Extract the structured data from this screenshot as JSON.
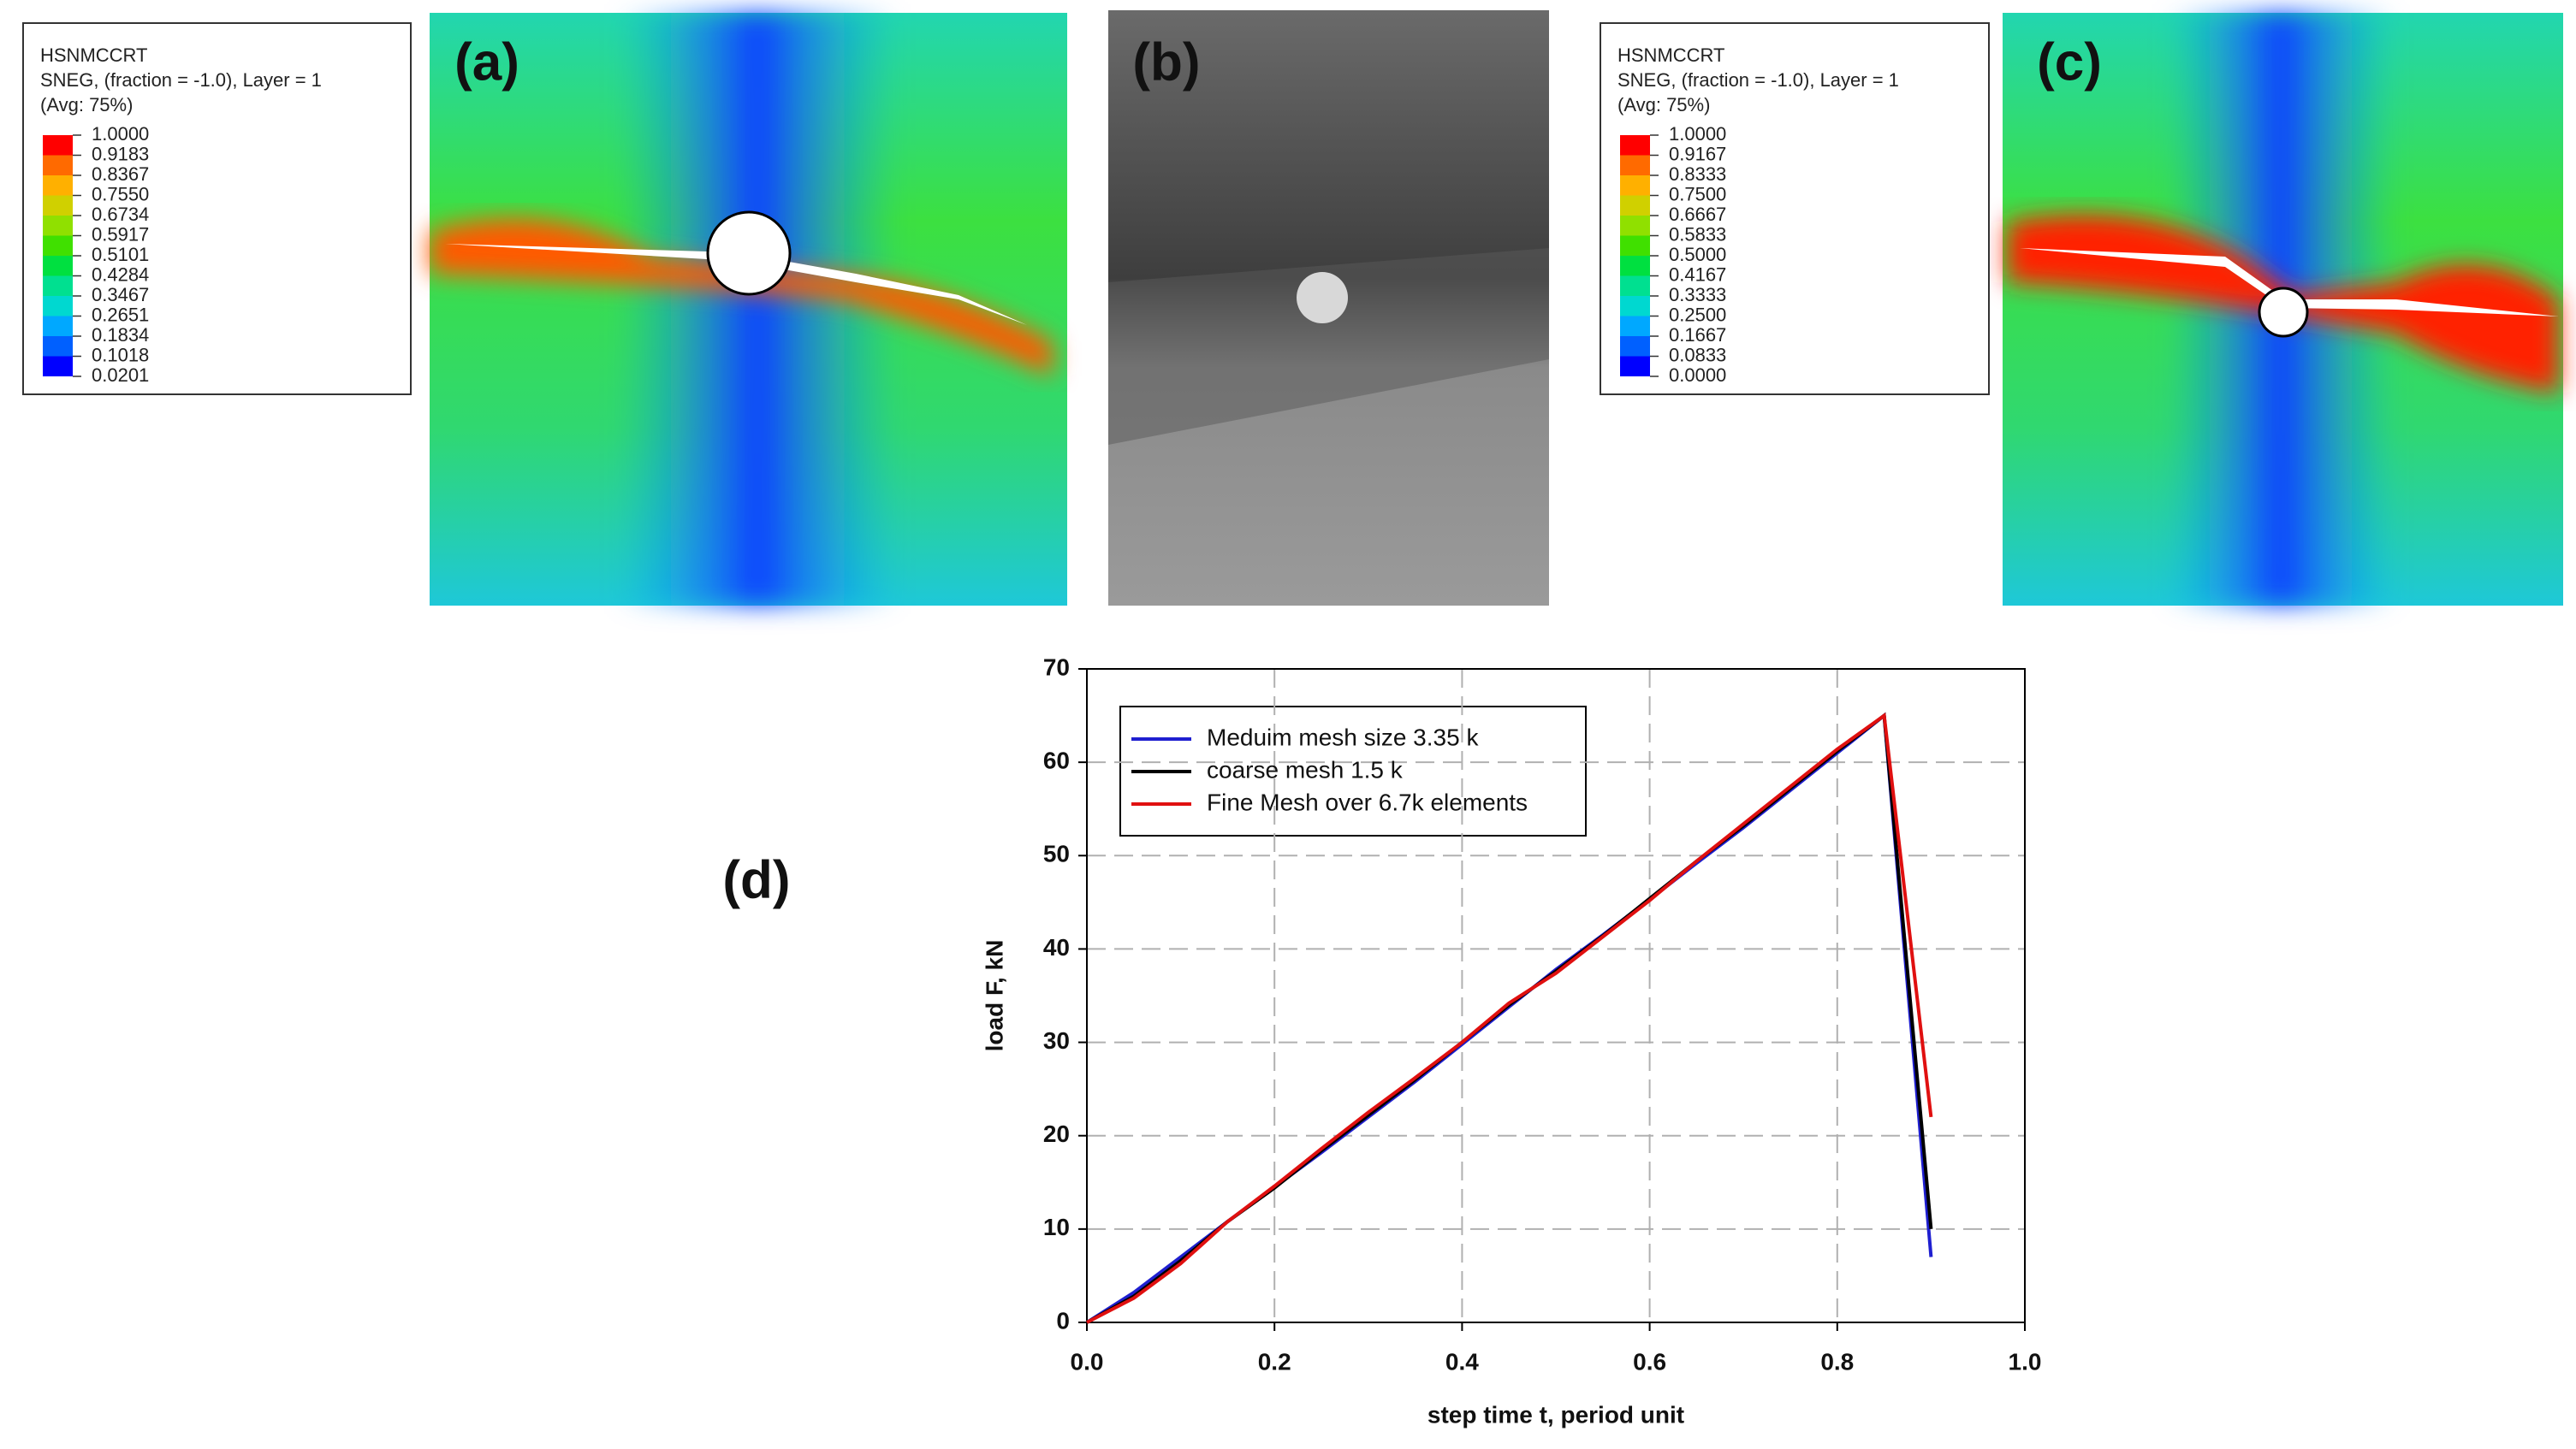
{
  "panels": {
    "a": {
      "label": "(a)",
      "legend": {
        "title": "HSNMCCRT",
        "variable": "SNEG, (fraction = -1.0), Layer = 1",
        "averaging": "(Avg: 75%)",
        "levels": [
          "1.0000",
          "0.9183",
          "0.8367",
          "0.7550",
          "0.6734",
          "0.5917",
          "0.5101",
          "0.4284",
          "0.3467",
          "0.2651",
          "0.1834",
          "0.1018",
          "0.0201"
        ]
      }
    },
    "b": {
      "label": "(b)"
    },
    "c": {
      "label": "(c)",
      "legend": {
        "title": "HSNMCCRT",
        "variable": "SNEG, (fraction = -1.0), Layer = 1",
        "averaging": "(Avg: 75%)",
        "levels": [
          "1.0000",
          "0.9167",
          "0.8333",
          "0.7500",
          "0.6667",
          "0.5833",
          "0.5000",
          "0.4167",
          "0.3333",
          "0.2500",
          "0.1667",
          "0.0833",
          "0.0000"
        ]
      }
    }
  },
  "chart_data": {
    "type": "line",
    "panel_label": "(d)",
    "xlabel": "step time t, period unit",
    "ylabel": "load F, kN",
    "x": [
      0,
      0.05,
      0.1,
      0.15,
      0.2,
      0.25,
      0.3,
      0.35,
      0.4,
      0.45,
      0.5,
      0.55,
      0.6,
      0.65,
      0.7,
      0.75,
      0.8,
      0.85,
      0.9
    ],
    "series": [
      {
        "name": "Meduim mesh size 3.35 k",
        "color": "#1f1fd0",
        "values": [
          0,
          3.2,
          7,
          10.8,
          14.5,
          18.2,
          22,
          25.8,
          29.8,
          33.8,
          37.8,
          41.5,
          45.3,
          49.2,
          53,
          57,
          61,
          65,
          7
        ]
      },
      {
        "name": "coarse mesh 1.5 k",
        "color": "#000000",
        "values": [
          0,
          2.8,
          6.6,
          10.8,
          14.4,
          18.4,
          22.2,
          26,
          30,
          34,
          37.6,
          41.4,
          45.4,
          49.4,
          53.2,
          57.2,
          61.2,
          65,
          10
        ]
      },
      {
        "name": "Fine Mesh over 6.7k elements",
        "color": "#e01010",
        "values": [
          0,
          2.6,
          6.3,
          10.8,
          14.6,
          18.6,
          22.5,
          26.2,
          30,
          34.2,
          37.4,
          41.3,
          45.2,
          49.4,
          53.4,
          57.4,
          61.4,
          65,
          22
        ]
      }
    ],
    "xlim": [
      0,
      1
    ],
    "ylim": [
      0,
      70
    ],
    "xticks": [
      {
        "value": 0,
        "label": "0.0"
      },
      {
        "value": 0.2,
        "label": "0.2"
      },
      {
        "value": 0.4,
        "label": "0.4"
      },
      {
        "value": 0.6,
        "label": "0.6"
      },
      {
        "value": 0.8,
        "label": "0.8"
      },
      {
        "value": 1,
        "label": "1.0"
      }
    ],
    "yticks": [
      0,
      10,
      20,
      30,
      40,
      50,
      60,
      70
    ],
    "grid": true,
    "legend": "upper left"
  }
}
